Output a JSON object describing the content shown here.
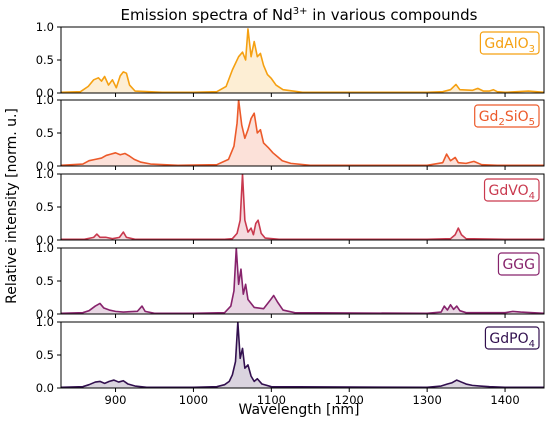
{
  "chart_data": {
    "type": "line",
    "title_prefix": "Emission spectra of Nd",
    "title_sup": "3+",
    "title_suffix": " in various compounds",
    "xlabel": "Wavelength [nm]",
    "ylabel": "Relative intensity [norm. u.]",
    "xlim": [
      830,
      1450
    ],
    "ylim": [
      0,
      1.0
    ],
    "xticks": [
      900,
      1000,
      1100,
      1200,
      1300,
      1400
    ],
    "yticks": [
      0.0,
      0.5,
      1.0
    ],
    "fill": true,
    "series": [
      {
        "label_main": "GdAlO",
        "label_sub": "3",
        "color": "#f5a011",
        "points": [
          [
            830,
            0.01
          ],
          [
            855,
            0.02
          ],
          [
            865,
            0.1
          ],
          [
            872,
            0.2
          ],
          [
            878,
            0.23
          ],
          [
            882,
            0.18
          ],
          [
            886,
            0.25
          ],
          [
            891,
            0.12
          ],
          [
            896,
            0.2
          ],
          [
            901,
            0.08
          ],
          [
            906,
            0.26
          ],
          [
            910,
            0.32
          ],
          [
            914,
            0.3
          ],
          [
            918,
            0.12
          ],
          [
            925,
            0.03
          ],
          [
            960,
            0.01
          ],
          [
            1000,
            0.01
          ],
          [
            1030,
            0.02
          ],
          [
            1042,
            0.1
          ],
          [
            1050,
            0.35
          ],
          [
            1058,
            0.55
          ],
          [
            1063,
            0.62
          ],
          [
            1067,
            0.5
          ],
          [
            1070,
            0.97
          ],
          [
            1074,
            0.55
          ],
          [
            1078,
            0.78
          ],
          [
            1082,
            0.55
          ],
          [
            1086,
            0.6
          ],
          [
            1090,
            0.42
          ],
          [
            1095,
            0.28
          ],
          [
            1100,
            0.22
          ],
          [
            1106,
            0.12
          ],
          [
            1115,
            0.05
          ],
          [
            1140,
            0.01
          ],
          [
            1300,
            0.01
          ],
          [
            1320,
            0.02
          ],
          [
            1330,
            0.05
          ],
          [
            1337,
            0.13
          ],
          [
            1342,
            0.05
          ],
          [
            1358,
            0.04
          ],
          [
            1365,
            0.07
          ],
          [
            1372,
            0.03
          ],
          [
            1380,
            0.03
          ],
          [
            1385,
            0.05
          ],
          [
            1390,
            0.02
          ],
          [
            1400,
            0.01
          ],
          [
            1430,
            0.03
          ],
          [
            1450,
            0.01
          ]
        ]
      },
      {
        "label_main": "Gd",
        "label_sub": "2",
        "label_mid": "SiO",
        "label_sub2": "5",
        "color": "#ec5a2a",
        "points": [
          [
            830,
            0.01
          ],
          [
            858,
            0.03
          ],
          [
            866,
            0.08
          ],
          [
            874,
            0.1
          ],
          [
            882,
            0.12
          ],
          [
            888,
            0.16
          ],
          [
            894,
            0.18
          ],
          [
            900,
            0.2
          ],
          [
            906,
            0.17
          ],
          [
            912,
            0.19
          ],
          [
            918,
            0.15
          ],
          [
            924,
            0.1
          ],
          [
            932,
            0.06
          ],
          [
            945,
            0.03
          ],
          [
            980,
            0.01
          ],
          [
            1030,
            0.02
          ],
          [
            1045,
            0.1
          ],
          [
            1052,
            0.3
          ],
          [
            1056,
            0.65
          ],
          [
            1058,
            1.0
          ],
          [
            1062,
            0.62
          ],
          [
            1066,
            0.42
          ],
          [
            1070,
            0.55
          ],
          [
            1074,
            0.72
          ],
          [
            1078,
            0.8
          ],
          [
            1082,
            0.5
          ],
          [
            1086,
            0.55
          ],
          [
            1090,
            0.35
          ],
          [
            1096,
            0.28
          ],
          [
            1102,
            0.2
          ],
          [
            1108,
            0.14
          ],
          [
            1114,
            0.08
          ],
          [
            1125,
            0.04
          ],
          [
            1150,
            0.01
          ],
          [
            1300,
            0.01
          ],
          [
            1320,
            0.05
          ],
          [
            1325,
            0.18
          ],
          [
            1330,
            0.08
          ],
          [
            1336,
            0.13
          ],
          [
            1340,
            0.05
          ],
          [
            1350,
            0.04
          ],
          [
            1360,
            0.07
          ],
          [
            1370,
            0.02
          ],
          [
            1390,
            0.01
          ],
          [
            1450,
            0.01
          ]
        ]
      },
      {
        "label_main": "GdVO",
        "label_sub": "4",
        "color": "#c9394e",
        "points": [
          [
            830,
            0.01
          ],
          [
            860,
            0.01
          ],
          [
            872,
            0.04
          ],
          [
            876,
            0.09
          ],
          [
            880,
            0.04
          ],
          [
            888,
            0.04
          ],
          [
            896,
            0.02
          ],
          [
            905,
            0.04
          ],
          [
            910,
            0.12
          ],
          [
            914,
            0.04
          ],
          [
            925,
            0.01
          ],
          [
            1000,
            0.01
          ],
          [
            1040,
            0.01
          ],
          [
            1050,
            0.02
          ],
          [
            1056,
            0.1
          ],
          [
            1060,
            0.3
          ],
          [
            1063,
            1.0
          ],
          [
            1066,
            0.3
          ],
          [
            1070,
            0.12
          ],
          [
            1074,
            0.18
          ],
          [
            1077,
            0.08
          ],
          [
            1080,
            0.25
          ],
          [
            1083,
            0.3
          ],
          [
            1087,
            0.1
          ],
          [
            1092,
            0.03
          ],
          [
            1110,
            0.01
          ],
          [
            1300,
            0.01
          ],
          [
            1330,
            0.02
          ],
          [
            1336,
            0.08
          ],
          [
            1340,
            0.18
          ],
          [
            1344,
            0.08
          ],
          [
            1350,
            0.02
          ],
          [
            1400,
            0.01
          ],
          [
            1450,
            0.01
          ]
        ]
      },
      {
        "label_main": "GGG",
        "label_sub": "",
        "color": "#87236c",
        "points": [
          [
            830,
            0.01
          ],
          [
            858,
            0.02
          ],
          [
            866,
            0.05
          ],
          [
            874,
            0.12
          ],
          [
            880,
            0.16
          ],
          [
            885,
            0.09
          ],
          [
            892,
            0.06
          ],
          [
            900,
            0.04
          ],
          [
            910,
            0.03
          ],
          [
            928,
            0.04
          ],
          [
            934,
            0.12
          ],
          [
            938,
            0.04
          ],
          [
            950,
            0.01
          ],
          [
            1000,
            0.01
          ],
          [
            1040,
            0.02
          ],
          [
            1048,
            0.12
          ],
          [
            1052,
            0.35
          ],
          [
            1055,
            1.0
          ],
          [
            1058,
            0.45
          ],
          [
            1061,
            0.68
          ],
          [
            1064,
            0.3
          ],
          [
            1067,
            0.45
          ],
          [
            1070,
            0.22
          ],
          [
            1078,
            0.1
          ],
          [
            1090,
            0.08
          ],
          [
            1098,
            0.2
          ],
          [
            1103,
            0.28
          ],
          [
            1108,
            0.18
          ],
          [
            1115,
            0.06
          ],
          [
            1130,
            0.02
          ],
          [
            1300,
            0.01
          ],
          [
            1318,
            0.03
          ],
          [
            1322,
            0.12
          ],
          [
            1326,
            0.06
          ],
          [
            1330,
            0.14
          ],
          [
            1334,
            0.07
          ],
          [
            1338,
            0.12
          ],
          [
            1342,
            0.05
          ],
          [
            1350,
            0.02
          ],
          [
            1400,
            0.02
          ],
          [
            1410,
            0.04
          ],
          [
            1420,
            0.03
          ],
          [
            1450,
            0.01
          ]
        ]
      },
      {
        "label_main": "GdPO",
        "label_sub": "4",
        "color": "#32104f",
        "points": [
          [
            830,
            0.01
          ],
          [
            858,
            0.02
          ],
          [
            866,
            0.05
          ],
          [
            874,
            0.09
          ],
          [
            880,
            0.1
          ],
          [
            886,
            0.07
          ],
          [
            892,
            0.1
          ],
          [
            898,
            0.12
          ],
          [
            904,
            0.09
          ],
          [
            910,
            0.11
          ],
          [
            916,
            0.06
          ],
          [
            925,
            0.03
          ],
          [
            940,
            0.01
          ],
          [
            1000,
            0.01
          ],
          [
            1030,
            0.02
          ],
          [
            1040,
            0.05
          ],
          [
            1046,
            0.1
          ],
          [
            1050,
            0.2
          ],
          [
            1054,
            0.4
          ],
          [
            1057,
            1.0
          ],
          [
            1060,
            0.45
          ],
          [
            1063,
            0.6
          ],
          [
            1066,
            0.3
          ],
          [
            1070,
            0.35
          ],
          [
            1074,
            0.18
          ],
          [
            1078,
            0.1
          ],
          [
            1082,
            0.14
          ],
          [
            1088,
            0.06
          ],
          [
            1100,
            0.02
          ],
          [
            1300,
            0.01
          ],
          [
            1318,
            0.03
          ],
          [
            1326,
            0.06
          ],
          [
            1332,
            0.08
          ],
          [
            1338,
            0.12
          ],
          [
            1344,
            0.09
          ],
          [
            1350,
            0.06
          ],
          [
            1358,
            0.04
          ],
          [
            1368,
            0.03
          ],
          [
            1380,
            0.02
          ],
          [
            1400,
            0.01
          ],
          [
            1450,
            0.01
          ]
        ]
      }
    ]
  }
}
